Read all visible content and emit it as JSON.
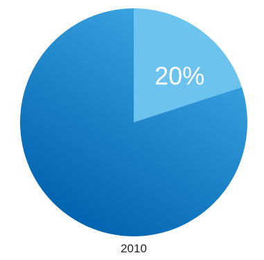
{
  "chart_data": {
    "type": "pie",
    "categories": [
      "",
      ""
    ],
    "values": [
      20,
      80
    ],
    "labels": [
      "20%",
      ""
    ],
    "caption": "2010",
    "colors": {
      "highlight": "#6cc3ee",
      "main_light": "#3fa9e4",
      "main_dark": "#0063b0"
    }
  }
}
